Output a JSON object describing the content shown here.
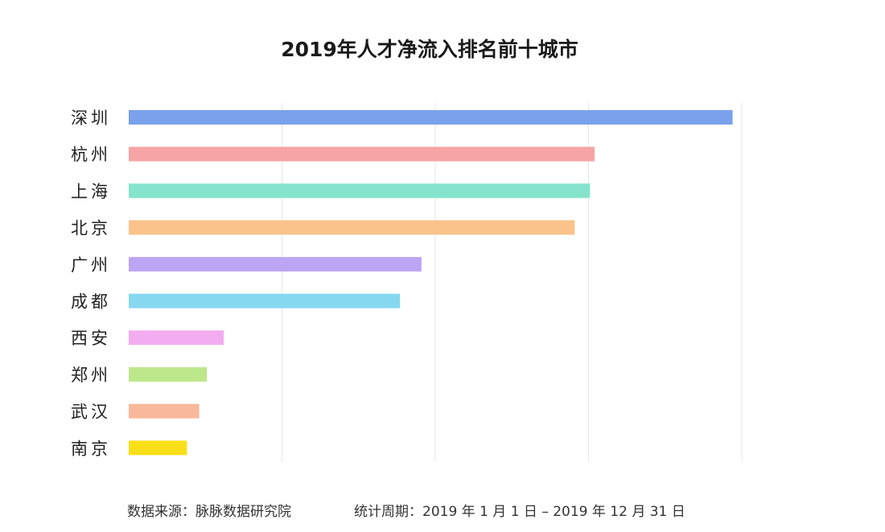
{
  "chart_data": {
    "type": "bar",
    "orientation": "horizontal",
    "title": "2019年人才净流入排名前十城市",
    "categories": [
      "深圳",
      "杭州",
      "上海",
      "北京",
      "广州",
      "成都",
      "西安",
      "郑州",
      "武汉",
      "南京"
    ],
    "values": [
      3.94,
      3.04,
      3.01,
      2.91,
      1.91,
      1.77,
      0.62,
      0.51,
      0.46,
      0.38
    ],
    "colors": [
      "#7aa1ec",
      "#f7a4a5",
      "#86e4cd",
      "#fbc38c",
      "#bca5f2",
      "#86d8f1",
      "#f4acf1",
      "#bde78b",
      "#f8b99b",
      "#f9df18"
    ],
    "xlim": [
      0,
      4
    ],
    "x_ticks_shown": false,
    "grid": true,
    "legend": "none"
  },
  "footer": {
    "source": "数据来源：脉脉数据研究院",
    "period": "统计周期：2019 年 1 月 1 日 – 2019 年 12 月 31 日"
  }
}
